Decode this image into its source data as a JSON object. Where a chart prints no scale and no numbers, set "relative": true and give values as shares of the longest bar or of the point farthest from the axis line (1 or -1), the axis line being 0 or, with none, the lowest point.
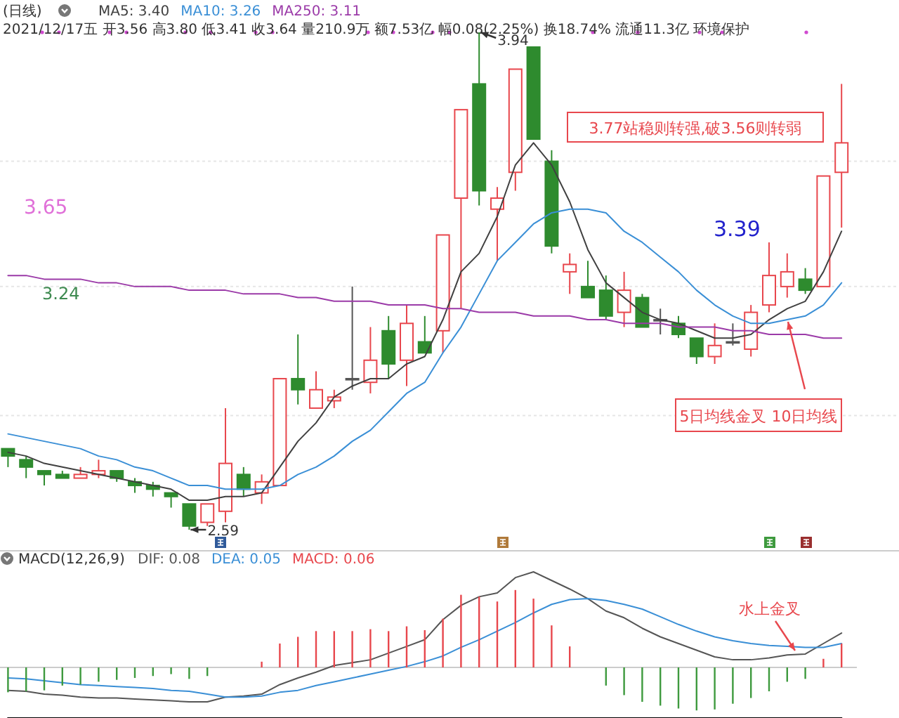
{
  "chart_data": [
    {
      "type": "candlestick",
      "title": "(日线)",
      "subtitle": "2021/12/17五 开3.56 高3.80 低3.41 收3.64 量210.9万 额7.53亿 幅0.08(2.25%) 换18.74% 流通11.3亿 环境保护",
      "categories": [
        null,
        null,
        null,
        null,
        null,
        null,
        null,
        null,
        null,
        null,
        null,
        null,
        null,
        null,
        null,
        null,
        null,
        null,
        null,
        null,
        null,
        null,
        null,
        null,
        null,
        null,
        null,
        null,
        null,
        null,
        null,
        null,
        null,
        null,
        null,
        null,
        null,
        null,
        null,
        null,
        null,
        null,
        null,
        null,
        null,
        null,
        null
      ],
      "ohlc": [
        [
          2.81,
          2.81,
          2.76,
          2.79
        ],
        [
          2.78,
          2.79,
          2.73,
          2.76
        ],
        [
          2.75,
          2.75,
          2.71,
          2.74
        ],
        [
          2.74,
          2.75,
          2.73,
          2.73
        ],
        [
          2.73,
          2.76,
          2.73,
          2.74
        ],
        [
          2.74,
          2.78,
          2.73,
          2.75
        ],
        [
          2.75,
          2.75,
          2.72,
          2.73
        ],
        [
          2.72,
          2.73,
          2.69,
          2.71
        ],
        [
          2.71,
          2.72,
          2.68,
          2.7
        ],
        [
          2.69,
          2.69,
          2.65,
          2.68
        ],
        [
          2.66,
          2.66,
          2.59,
          2.6
        ],
        [
          2.61,
          2.66,
          2.6,
          2.66
        ],
        [
          2.64,
          2.92,
          2.61,
          2.77
        ],
        [
          2.74,
          2.76,
          2.68,
          2.7
        ],
        [
          2.69,
          2.74,
          2.66,
          2.72
        ],
        [
          2.71,
          3.0,
          2.71,
          3.0
        ],
        [
          3.0,
          3.12,
          2.93,
          2.97
        ],
        [
          2.92,
          3.02,
          2.92,
          2.97
        ],
        [
          2.94,
          2.97,
          2.92,
          2.95
        ],
        [
          3.0,
          3.25,
          2.97,
          3.0
        ],
        [
          2.99,
          3.14,
          2.96,
          3.05
        ],
        [
          3.13,
          3.17,
          3.0,
          3.04
        ],
        [
          3.05,
          3.2,
          2.98,
          3.15
        ],
        [
          3.1,
          3.17,
          3.07,
          3.07
        ],
        [
          3.13,
          3.39,
          3.07,
          3.39
        ],
        [
          3.49,
          3.73,
          3.19,
          3.73
        ],
        [
          3.8,
          3.94,
          3.47,
          3.51
        ],
        [
          3.46,
          3.52,
          3.32,
          3.49
        ],
        [
          3.56,
          3.84,
          3.51,
          3.84
        ],
        [
          3.9,
          3.9,
          3.65,
          3.65
        ],
        [
          3.59,
          3.62,
          3.34,
          3.36
        ],
        [
          3.29,
          3.34,
          3.23,
          3.31
        ],
        [
          3.25,
          3.32,
          3.22,
          3.22
        ],
        [
          3.24,
          3.28,
          3.16,
          3.17
        ],
        [
          3.18,
          3.29,
          3.14,
          3.24
        ],
        [
          3.22,
          3.23,
          3.14,
          3.14
        ],
        [
          3.16,
          3.19,
          3.12,
          3.16
        ],
        [
          3.15,
          3.17,
          3.11,
          3.12
        ],
        [
          3.11,
          3.11,
          3.04,
          3.06
        ],
        [
          3.06,
          3.15,
          3.04,
          3.09
        ],
        [
          3.1,
          3.15,
          3.09,
          3.1
        ],
        [
          3.08,
          3.2,
          3.06,
          3.18
        ],
        [
          3.2,
          3.37,
          3.18,
          3.28
        ],
        [
          3.25,
          3.34,
          3.22,
          3.29
        ],
        [
          3.27,
          3.3,
          3.23,
          3.24
        ],
        [
          3.25,
          3.55,
          3.25,
          3.55
        ],
        [
          3.56,
          3.8,
          3.41,
          3.64
        ]
      ],
      "colors": [
        "#2e8b2e",
        "#2e8b2e",
        "#2e8b2e",
        "#2e8b2e",
        "#e8474d",
        "#e8474d",
        "#2e8b2e",
        "#2e8b2e",
        "#2e8b2e",
        "#2e8b2e",
        "#2e8b2e",
        "#e8474d",
        "#e8474d",
        "#2e8b2e",
        "#e8474d",
        "#e8474d",
        "#2e8b2e",
        "#e8474d",
        "#e8474d",
        "#555555",
        "#e8474d",
        "#2e8b2e",
        "#e8474d",
        "#2e8b2e",
        "#e8474d",
        "#e8474d",
        "#2e8b2e",
        "#e8474d",
        "#e8474d",
        "#2e8b2e",
        "#2e8b2e",
        "#e8474d",
        "#2e8b2e",
        "#2e8b2e",
        "#e8474d",
        "#2e8b2e",
        "#555555",
        "#2e8b2e",
        "#2e8b2e",
        "#e8474d",
        "#555555",
        "#e8474d",
        "#e8474d",
        "#e8474d",
        "#2e8b2e",
        "#e8474d",
        "#e8474d"
      ],
      "series": [
        {
          "name": "MA5: 3.40",
          "type": "line",
          "color": "#404040",
          "values": [
            2.8,
            2.79,
            2.77,
            2.76,
            2.75,
            2.74,
            2.73,
            2.72,
            2.71,
            2.7,
            2.67,
            2.67,
            2.68,
            2.68,
            2.69,
            2.76,
            2.83,
            2.88,
            2.95,
            2.98,
            3.0,
            3.0,
            3.04,
            3.06,
            3.16,
            3.29,
            3.34,
            3.44,
            3.58,
            3.64,
            3.58,
            3.48,
            3.35,
            3.26,
            3.22,
            3.18,
            3.16,
            3.15,
            3.13,
            3.11,
            3.11,
            3.12,
            3.16,
            3.19,
            3.21,
            3.29,
            3.4
          ]
        },
        {
          "name": "MA10: 3.26",
          "type": "line",
          "color": "#3a8fd6",
          "values": [
            2.85,
            2.84,
            2.83,
            2.82,
            2.81,
            2.79,
            2.78,
            2.76,
            2.75,
            2.73,
            2.71,
            2.71,
            2.7,
            2.7,
            2.7,
            2.71,
            2.74,
            2.76,
            2.79,
            2.83,
            2.86,
            2.91,
            2.96,
            2.99,
            3.07,
            3.14,
            3.23,
            3.32,
            3.37,
            3.42,
            3.45,
            3.46,
            3.46,
            3.45,
            3.4,
            3.37,
            3.33,
            3.29,
            3.24,
            3.2,
            3.17,
            3.15,
            3.15,
            3.16,
            3.17,
            3.2,
            3.26
          ]
        },
        {
          "name": "MA250: 3.11",
          "type": "line",
          "color": "#9b3aa8",
          "values": [
            3.28,
            3.28,
            3.27,
            3.27,
            3.27,
            3.26,
            3.26,
            3.25,
            3.25,
            3.25,
            3.24,
            3.24,
            3.24,
            3.23,
            3.23,
            3.23,
            3.22,
            3.22,
            3.21,
            3.21,
            3.21,
            3.2,
            3.2,
            3.2,
            3.19,
            3.19,
            3.18,
            3.18,
            3.18,
            3.17,
            3.17,
            3.17,
            3.16,
            3.16,
            3.15,
            3.15,
            3.15,
            3.14,
            3.14,
            3.14,
            3.13,
            3.13,
            3.12,
            3.12,
            3.12,
            3.11,
            3.11
          ]
        }
      ],
      "yticks": [
        {
          "value": 3.59,
          "label": null
        },
        {
          "value": 3.25,
          "label": null
        },
        {
          "value": 2.9,
          "label": null
        }
      ],
      "grid": "y",
      "tick_labels": false,
      "legend": "top left",
      "annotations": [
        "3.65",
        "3.24",
        "3.39",
        "3.94",
        "2.59",
        "3.77站稳则转强,破3.56则转弱",
        "5日均线金叉 10日均线"
      ]
    },
    {
      "type": "bar",
      "title": "MACD(12,26,9)",
      "relative": true,
      "legend": "top left",
      "categories": [
        null,
        null,
        null,
        null,
        null,
        null,
        null,
        null,
        null,
        null,
        null,
        null,
        null,
        null,
        null,
        null,
        null,
        null,
        null,
        null,
        null,
        null,
        null,
        null,
        null,
        null,
        null,
        null,
        null,
        null,
        null,
        null,
        null,
        null,
        null,
        null,
        null,
        null,
        null,
        null,
        null,
        null,
        null,
        null,
        null,
        null,
        null
      ],
      "series": [
        {
          "name": "DIF: 0.08",
          "type": "line",
          "color": "#555555",
          "values": [
            -0.24,
            -0.25,
            -0.28,
            -0.29,
            -0.31,
            -0.32,
            -0.32,
            -0.33,
            -0.34,
            -0.35,
            -0.36,
            -0.36,
            -0.31,
            -0.3,
            -0.28,
            -0.18,
            -0.11,
            -0.05,
            0.02,
            0.05,
            0.08,
            0.15,
            0.22,
            0.29,
            0.5,
            0.65,
            0.74,
            0.78,
            0.94,
            1,
            0.91,
            0.82,
            0.72,
            0.59,
            0.52,
            0.41,
            0.32,
            0.25,
            0.18,
            0.11,
            0.08,
            0.08,
            0.1,
            0.13,
            0.14,
            0.25,
            0.36
          ]
        },
        {
          "name": "DEA: 0.05",
          "type": "line",
          "color": "#3a8fd6",
          "values": [
            -0.11,
            -0.12,
            -0.14,
            -0.16,
            -0.18,
            -0.19,
            -0.2,
            -0.21,
            -0.22,
            -0.24,
            -0.25,
            -0.28,
            -0.31,
            -0.31,
            -0.3,
            -0.26,
            -0.24,
            -0.19,
            -0.15,
            -0.11,
            -0.07,
            -0.03,
            0.01,
            0.06,
            0.12,
            0.21,
            0.29,
            0.38,
            0.47,
            0.57,
            0.66,
            0.71,
            0.72,
            0.7,
            0.66,
            0.61,
            0.53,
            0.45,
            0.38,
            0.32,
            0.28,
            0.25,
            0.23,
            0.22,
            0.21,
            0.21,
            0.25
          ]
        },
        {
          "name": "MACD: 0.06",
          "type": "bar",
          "color": "#e8474d",
          "values": [
            -0.26,
            -0.25,
            -0.24,
            -0.19,
            -0.18,
            -0.15,
            -0.13,
            -0.11,
            -0.09,
            -0.07,
            -0.12,
            -0.09,
            0,
            0,
            0.06,
            0.25,
            0.32,
            0.38,
            0.38,
            0.38,
            0.4,
            0.38,
            0.43,
            0.39,
            0.51,
            0.76,
            0.74,
            0.69,
            0.81,
            0.72,
            0.44,
            0.22,
            0,
            -0.19,
            -0.29,
            -0.36,
            -0.4,
            -0.43,
            -0.45,
            -0.44,
            -0.38,
            -0.32,
            -0.25,
            -0.15,
            -0.12,
            0.09,
            0.25
          ],
          "colors": [
            "#3e9a3e",
            "#3e9a3e",
            "#3e9a3e",
            "#3e9a3e",
            "#3e9a3e",
            "#3e9a3e",
            "#3e9a3e",
            "#3e9a3e",
            "#3e9a3e",
            "#3e9a3e",
            "#3e9a3e",
            "#3e9a3e",
            "#e8474d",
            "#e8474d",
            "#e8474d",
            "#e8474d",
            "#e8474d",
            "#e8474d",
            "#e8474d",
            "#e8474d",
            "#e8474d",
            "#e8474d",
            "#e8474d",
            "#e8474d",
            "#e8474d",
            "#e8474d",
            "#e8474d",
            "#e8474d",
            "#e8474d",
            "#e8474d",
            "#e8474d",
            "#e8474d",
            "#e8474d",
            "#3e9a3e",
            "#3e9a3e",
            "#3e9a3e",
            "#3e9a3e",
            "#3e9a3e",
            "#3e9a3e",
            "#3e9a3e",
            "#3e9a3e",
            "#3e9a3e",
            "#3e9a3e",
            "#3e9a3e",
            "#3e9a3e",
            "#e8474d",
            "#e8474d"
          ]
        }
      ],
      "annotations": [
        "水上金叉"
      ]
    }
  ]
}
